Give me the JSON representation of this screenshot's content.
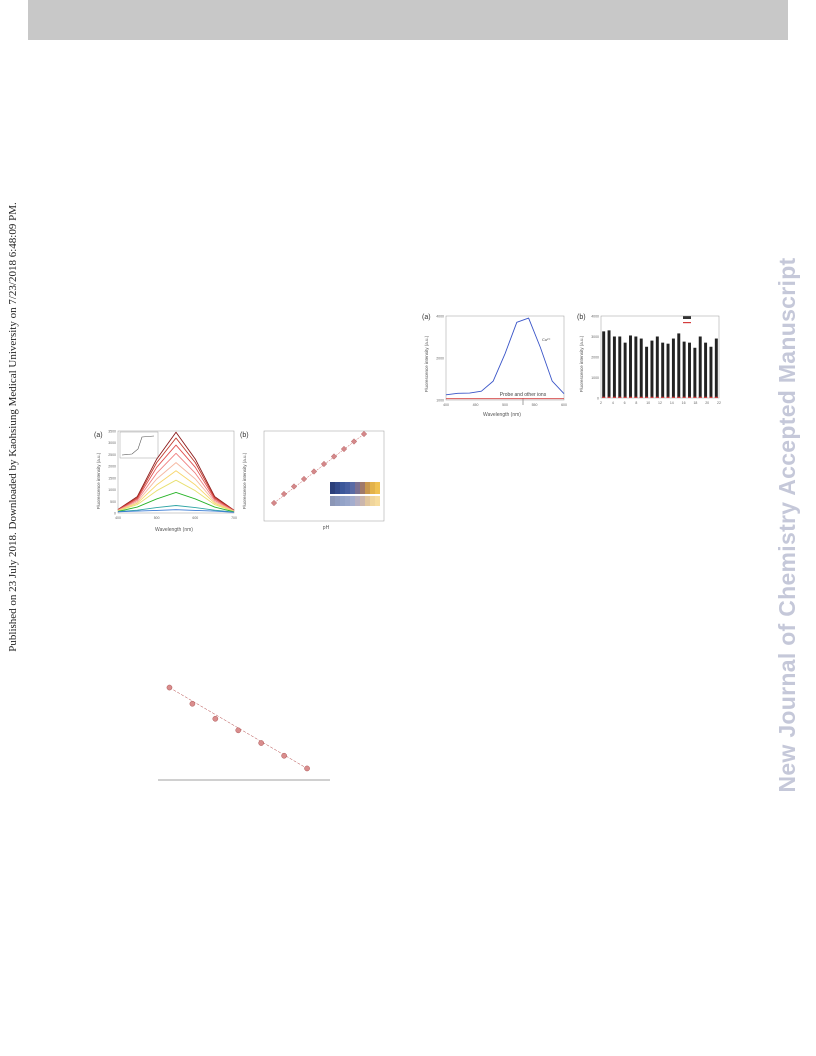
{
  "header": {
    "bar_color": "#c8c8c8"
  },
  "sidebar_left": {
    "text": "Published on 23 July 2018. Downloaded by Kaohsiung Medical University on 7/23/2018 6:48:09 PM."
  },
  "sidebar_right": {
    "text": "New Journal of Chemistry Accepted Manuscript",
    "color": "#c5c8d9"
  },
  "figure_top_right": {
    "panel_a": {
      "label": "(a)",
      "ylabel": "Fluorescence intensity (a.u.)",
      "xlabel": "Wavelength (nm)",
      "annotation": "Probe and other ions",
      "legend": "Cu²⁺",
      "yticks": [
        "4000",
        "2000",
        "1000"
      ],
      "xticks": [
        "400",
        "450",
        "500",
        "550",
        "600"
      ],
      "chart_data": {
        "type": "line",
        "x": [
          400,
          420,
          440,
          460,
          480,
          500,
          520,
          540,
          560,
          580,
          600
        ],
        "series": [
          {
            "name": "Cu²⁺",
            "color": "#3a55c8",
            "values": [
              250,
              320,
              330,
              420,
              900,
              2200,
              3700,
              3900,
              2500,
              900,
              300
            ]
          },
          {
            "name": "",
            "color": "#d43c3c",
            "values": [
              60,
              60,
              60,
              60,
              60,
              60,
              60,
              60,
              60,
              60,
              60
            ]
          }
        ],
        "ylim": [
          0,
          4000
        ],
        "xlim": [
          400,
          600
        ]
      }
    },
    "panel_b": {
      "label": "(b)",
      "ylabel": "Fluorescence intensity (a.u.)",
      "legend": [
        "",
        ""
      ],
      "yticks": [
        "4000",
        "3000",
        "2000",
        "1000",
        "0"
      ],
      "xticks": [
        "2",
        "4",
        "6",
        "8",
        "10",
        "12",
        "14",
        "16",
        "18",
        "20",
        "22"
      ],
      "chart_data": {
        "type": "bar",
        "categories": [
          "1",
          "2",
          "3",
          "4",
          "5",
          "6",
          "7",
          "8",
          "9",
          "10",
          "11",
          "12",
          "13",
          "14",
          "15",
          "16",
          "17",
          "18",
          "19",
          "20",
          "21",
          "22"
        ],
        "series": [
          {
            "name": "",
            "color": "#222222",
            "values": [
              3250,
              3300,
              3000,
              3000,
              2700,
              3050,
              3000,
              2900,
              2500,
              2800,
              3000,
              2700,
              2650,
              2900,
              3150,
              2750,
              2700,
              2450,
              3000,
              2700,
              2500,
              2900
            ]
          },
          {
            "name": "",
            "color": "#d43c3c",
            "values": [
              60,
              60,
              60,
              60,
              60,
              60,
              60,
              60,
              60,
              60,
              60,
              60,
              60,
              60,
              60,
              60,
              60,
              60,
              60,
              60,
              60,
              60
            ]
          }
        ],
        "ylim": [
          0,
          4000
        ]
      }
    }
  },
  "figure_middle_left": {
    "panel_a": {
      "label": "(a)",
      "ylabel": "Fluorescence intensity (a.u.)",
      "xlabel": "Wavelength (nm)",
      "yticks": [
        "3500",
        "3000",
        "2500",
        "2000",
        "1500",
        "1000",
        "500",
        "0"
      ],
      "xticks": [
        "400",
        "500",
        "600",
        "700"
      ],
      "chart_data": {
        "type": "line",
        "x": [
          400,
          450,
          500,
          550,
          600,
          650,
          700
        ],
        "series": [
          {
            "name": "",
            "color": "#8b1a1a",
            "values": [
              150,
              700,
              2300,
              3450,
              2300,
              700,
              120
            ]
          },
          {
            "name": "",
            "color": "#c0392b",
            "values": [
              140,
              650,
              2150,
              3200,
              2150,
              650,
              110
            ]
          },
          {
            "name": "",
            "color": "#e05050",
            "values": [
              130,
              600,
              1950,
              2900,
              1950,
              600,
              100
            ]
          },
          {
            "name": "",
            "color": "#f08080",
            "values": [
              120,
              540,
              1700,
              2550,
              1700,
              540,
              90
            ]
          },
          {
            "name": "",
            "color": "#f5b7a0",
            "values": [
              110,
              480,
              1450,
              2150,
              1450,
              480,
              80
            ]
          },
          {
            "name": "",
            "color": "#f7d56a",
            "values": [
              100,
              420,
              1200,
              1800,
              1200,
              420,
              70
            ]
          },
          {
            "name": "",
            "color": "#e8e070",
            "values": [
              90,
              360,
              950,
              1400,
              950,
              360,
              60
            ]
          },
          {
            "name": "",
            "color": "#28b428",
            "values": [
              70,
              250,
              600,
              880,
              600,
              250,
              50
            ]
          },
          {
            "name": "",
            "color": "#2fa5a5",
            "values": [
              60,
              120,
              230,
              320,
              230,
              120,
              40
            ]
          },
          {
            "name": "",
            "color": "#3a7bd5",
            "values": [
              50,
              80,
              110,
              140,
              110,
              80,
              30
            ]
          }
        ],
        "ylim": [
          0,
          3500
        ],
        "xlim": [
          400,
          700
        ]
      }
    },
    "panel_b": {
      "label": "(b)",
      "ylabel": "Fluorescence intensity (a.u.)",
      "xlabel": "pH",
      "fit_label": "",
      "swatch_colors": [
        "#2b3f7a",
        "#334a8a",
        "#3b579a",
        "#465ea0",
        "#596aa5",
        "#7b6f90",
        "#a07a6a",
        "#c9984d",
        "#e3b24a",
        "#f0c150"
      ],
      "chart_data": {
        "type": "scatter",
        "x": [
          2.5,
          3,
          3.5,
          4,
          4.5,
          5,
          5.5,
          6,
          6.5,
          7
        ],
        "values": [
          600,
          900,
          1150,
          1400,
          1650,
          1900,
          2150,
          2400,
          2650,
          2900
        ],
        "xlim": [
          2,
          8
        ],
        "ylim": [
          0,
          3000
        ]
      }
    }
  },
  "figure_bottom": {
    "label_1": "",
    "label_2": "",
    "chart_data": {
      "type": "scatter",
      "x": [
        1,
        2,
        3,
        4,
        5,
        6,
        7
      ],
      "values": [
        10,
        8.6,
        7.3,
        6.3,
        5.2,
        4.1,
        3.0
      ],
      "xlim": [
        0.5,
        8
      ],
      "ylim": [
        2,
        11
      ]
    }
  }
}
